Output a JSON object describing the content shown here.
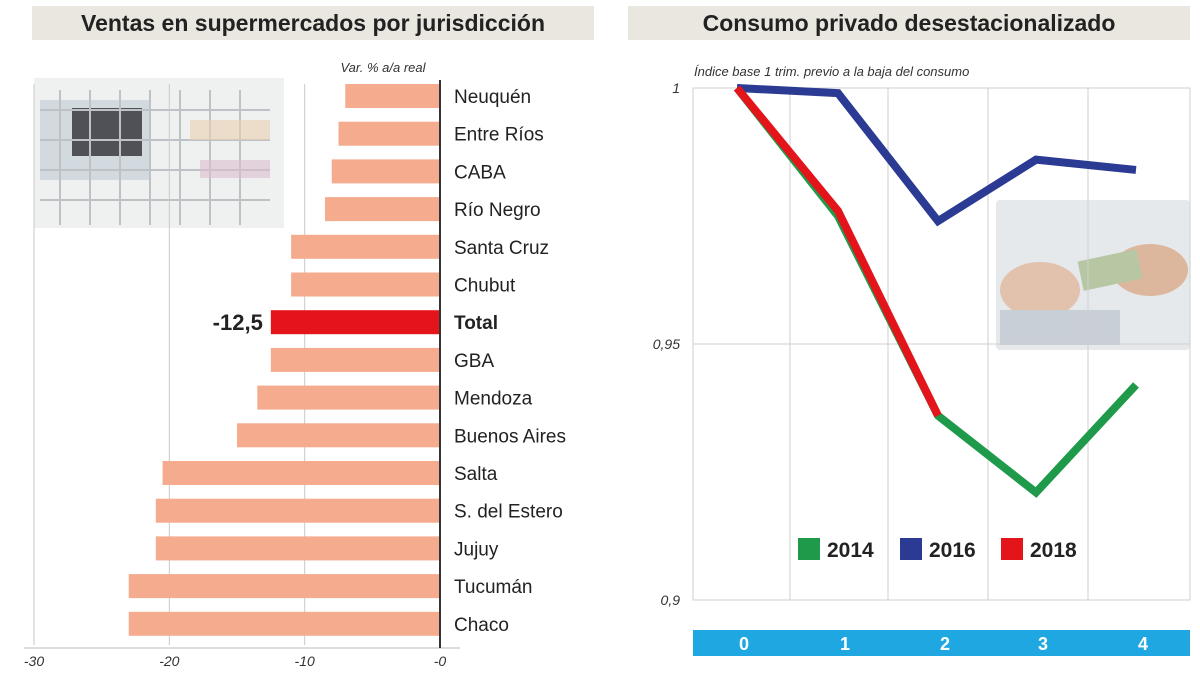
{
  "panels": {
    "left_title": "Ventas en supermercados por jurisdicción",
    "right_title": "Consumo privado desestacionalizado"
  },
  "chart_data": [
    {
      "type": "bar",
      "orientation": "horizontal",
      "title": "Ventas en supermercados por jurisdicción",
      "unit_note": "Var. % a/a real",
      "categories": [
        "Neuquén",
        "Entre Ríos",
        "CABA",
        "Río Negro",
        "Santa Cruz",
        "Chubut",
        "Total",
        "GBA",
        "Mendoza",
        "Buenos Aires",
        "Salta",
        "S. del Estero",
        "Jujuy",
        "Tucumán",
        "Chaco"
      ],
      "values": [
        -7.0,
        -7.5,
        -8.0,
        -8.5,
        -11.0,
        -11.0,
        -12.5,
        -12.5,
        -13.5,
        -15.0,
        -20.5,
        -21.0,
        -21.0,
        -23.0,
        -23.0
      ],
      "highlight": "Total",
      "highlight_label": "-12,5",
      "xlim": [
        -30,
        0
      ],
      "xticks": [
        "-30",
        "-20",
        "-10",
        "-0"
      ],
      "xtick_values": [
        -30,
        -20,
        -10,
        0
      ],
      "colors": {
        "bar": "#f4ab8e",
        "highlight": "#e4141b"
      }
    },
    {
      "type": "line",
      "title": "Consumo privado desestacionalizado",
      "subtitle": "Índice base 1 trim. previo a la baja del consumo",
      "x": [
        0,
        1,
        2,
        3,
        4
      ],
      "xticks": [
        "0",
        "1",
        "2",
        "3",
        "4"
      ],
      "ylim": [
        0.9,
        1.0
      ],
      "yticks": [
        "1",
        "0,95",
        "0,9"
      ],
      "ytick_values": [
        1.0,
        0.95,
        0.9
      ],
      "series": [
        {
          "name": "2014",
          "color": "#1e9a4a",
          "values": [
            1.0,
            0.975,
            0.936,
            0.921,
            0.942
          ]
        },
        {
          "name": "2016",
          "color": "#2b3a93",
          "values": [
            1.0,
            0.999,
            0.974,
            0.986,
            0.984
          ]
        },
        {
          "name": "2018",
          "color": "#e4141b",
          "values": [
            1.0,
            0.976,
            0.936,
            null,
            null
          ]
        }
      ],
      "grid": true,
      "legend": "bottom-center"
    }
  ]
}
